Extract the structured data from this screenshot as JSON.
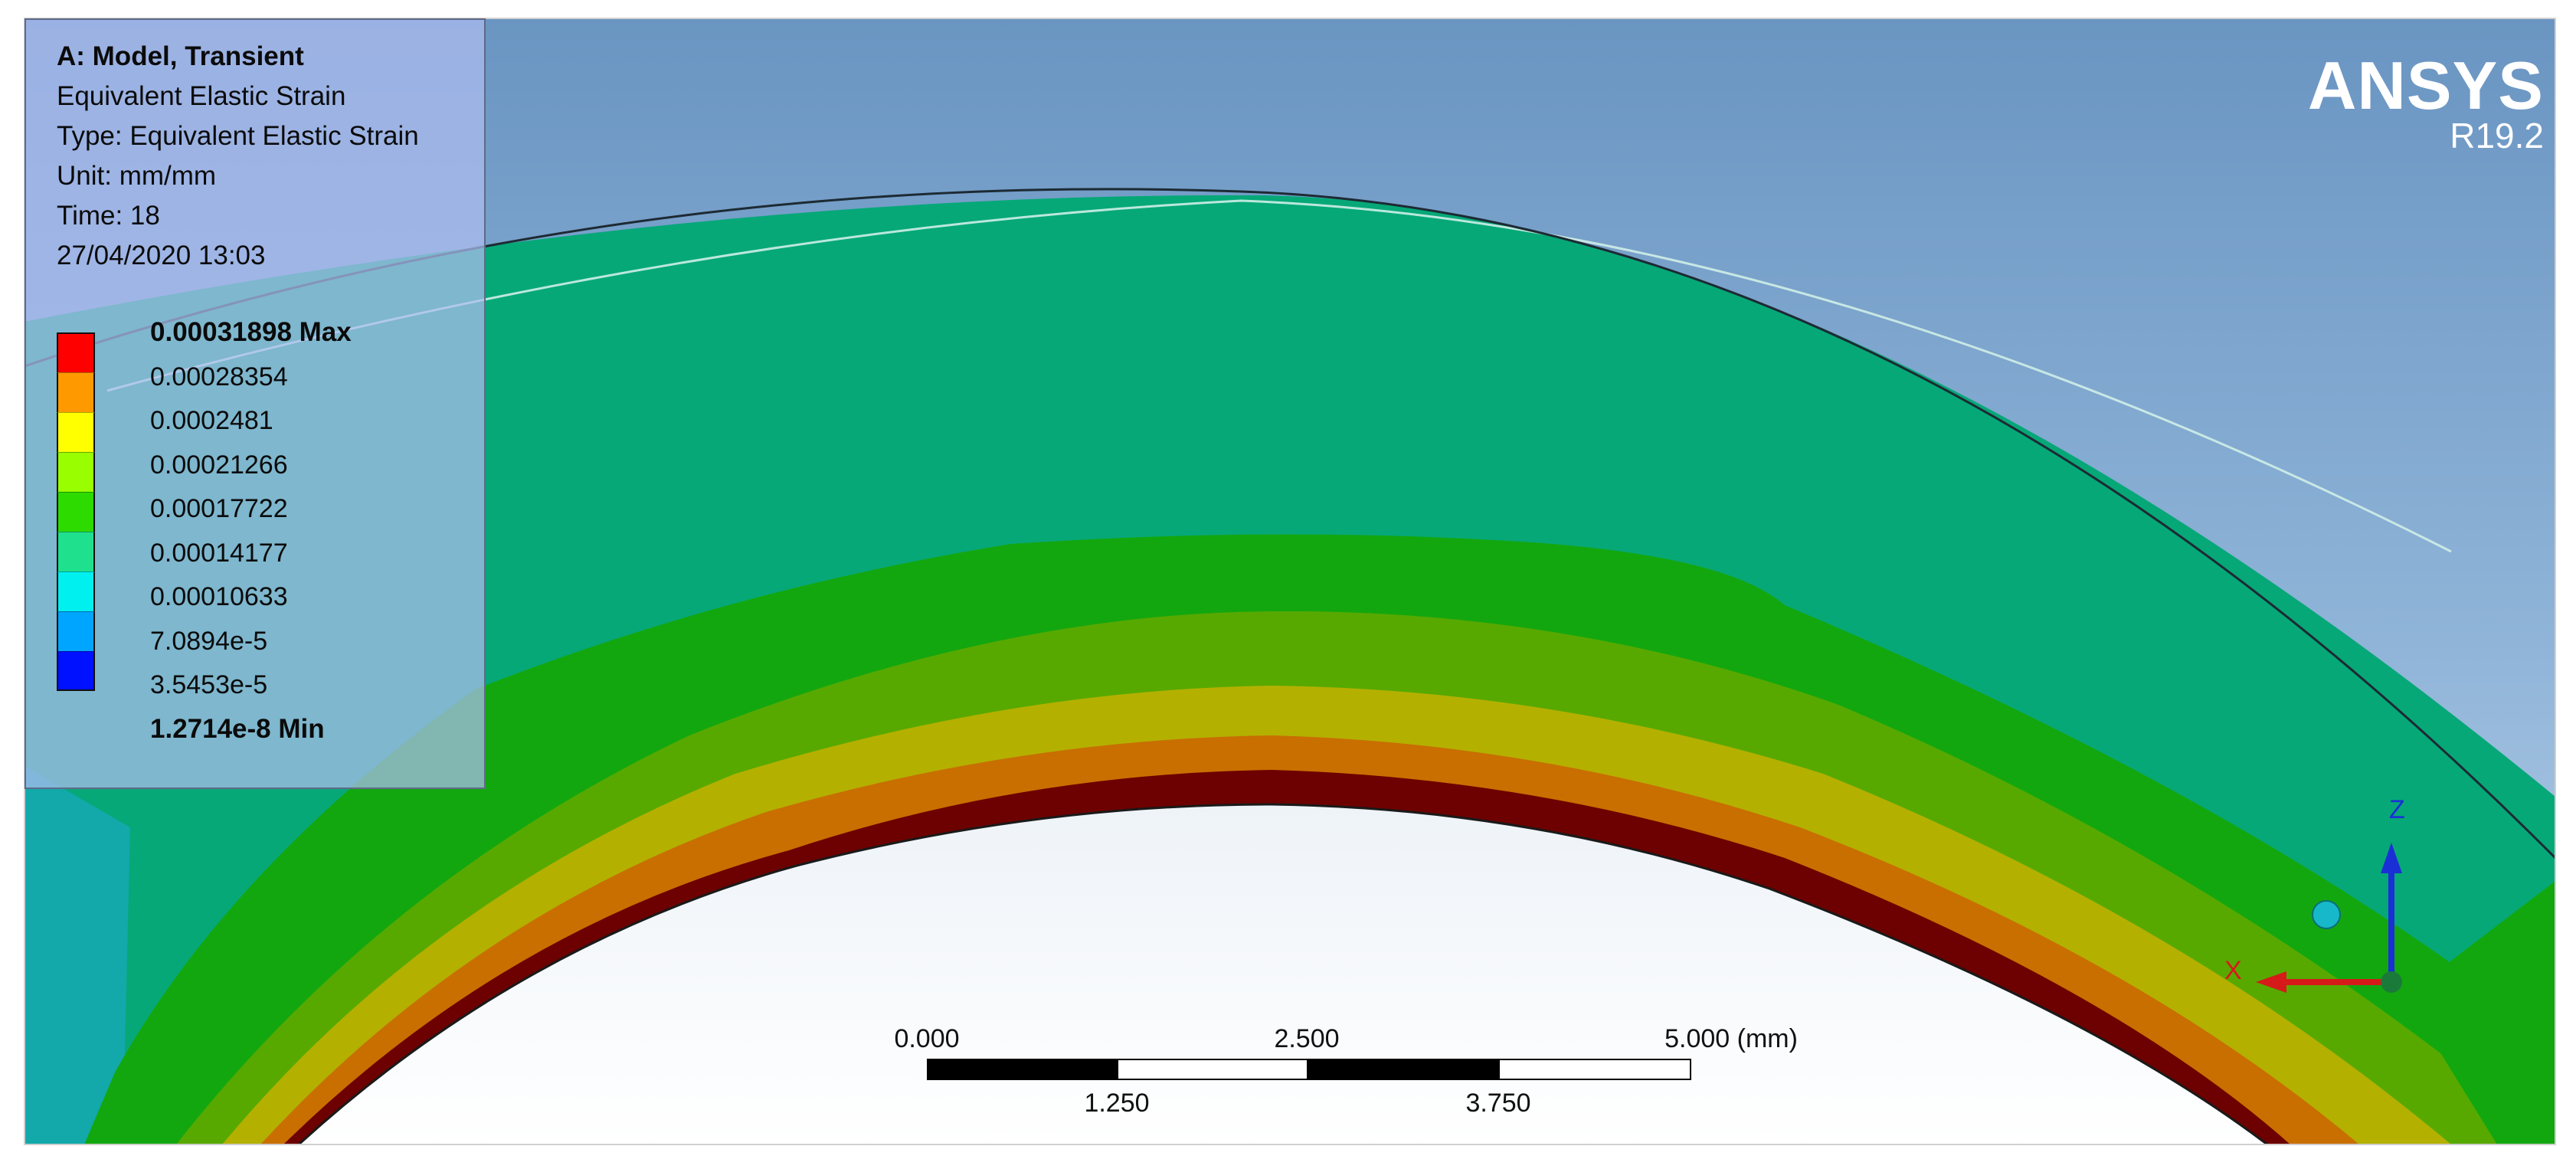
{
  "legend": {
    "title": "A: Model, Transient",
    "result_name": "Equivalent Elastic Strain",
    "type_line": "Type: Equivalent Elastic Strain",
    "unit_line": "Unit: mm/mm",
    "time_line": "Time: 18",
    "timestamp": "27/04/2020 13:03",
    "levels": [
      {
        "label": "0.00031898 Max",
        "value": 0.00031898,
        "color": "#ff0000",
        "bold": true
      },
      {
        "label": "0.00028354",
        "value": 0.00028354,
        "color": "#ff9900",
        "bold": false
      },
      {
        "label": "0.0002481",
        "value": 0.0002481,
        "color": "#ffff00",
        "bold": false
      },
      {
        "label": "0.00021266",
        "value": 0.00021266,
        "color": "#99ff00",
        "bold": false
      },
      {
        "label": "0.00017722",
        "value": 0.00017722,
        "color": "#2ddb00",
        "bold": false
      },
      {
        "label": "0.00014177",
        "value": 0.00014177,
        "color": "#1fe08c",
        "bold": false
      },
      {
        "label": "0.00010633",
        "value": 0.00010633,
        "color": "#00f0f0",
        "bold": false
      },
      {
        "label": "7.0894e-5",
        "value": 7.0894e-05,
        "color": "#00a5ff",
        "bold": false
      },
      {
        "label": "3.5453e-5",
        "value": 3.5453e-05,
        "color": "#0011ff",
        "bold": false
      },
      {
        "label": "1.2714e-8 Min",
        "value": 1.2714e-08,
        "color": "#0011ff",
        "bold": true
      }
    ]
  },
  "brand": {
    "name": "ANSYS",
    "version": "R19.2"
  },
  "scale_bar": {
    "top_labels": [
      "0.000",
      "2.500",
      "5.000 (mm)"
    ],
    "bottom_labels": [
      "1.250",
      "3.750"
    ]
  },
  "triad": {
    "z_label": "Z",
    "x_label": "X",
    "colors": {
      "z": "#1a2fd6",
      "x": "#d61a1a",
      "origin": "#1a7a3a",
      "iso_ball": "#17b8c9"
    }
  },
  "colors": {
    "background_top": "#6d97c3",
    "background_bottom": "#a9c4df",
    "viewport_bottom": "#ffffff",
    "band_max": "#6d0000",
    "band_orange": "#c86f00",
    "band_yellow": "#b4b000",
    "band_lightgreen": "#57a900",
    "band_green": "#13a70f",
    "band_teal": "#0aa878",
    "band_cyan": "#13a8aa"
  }
}
